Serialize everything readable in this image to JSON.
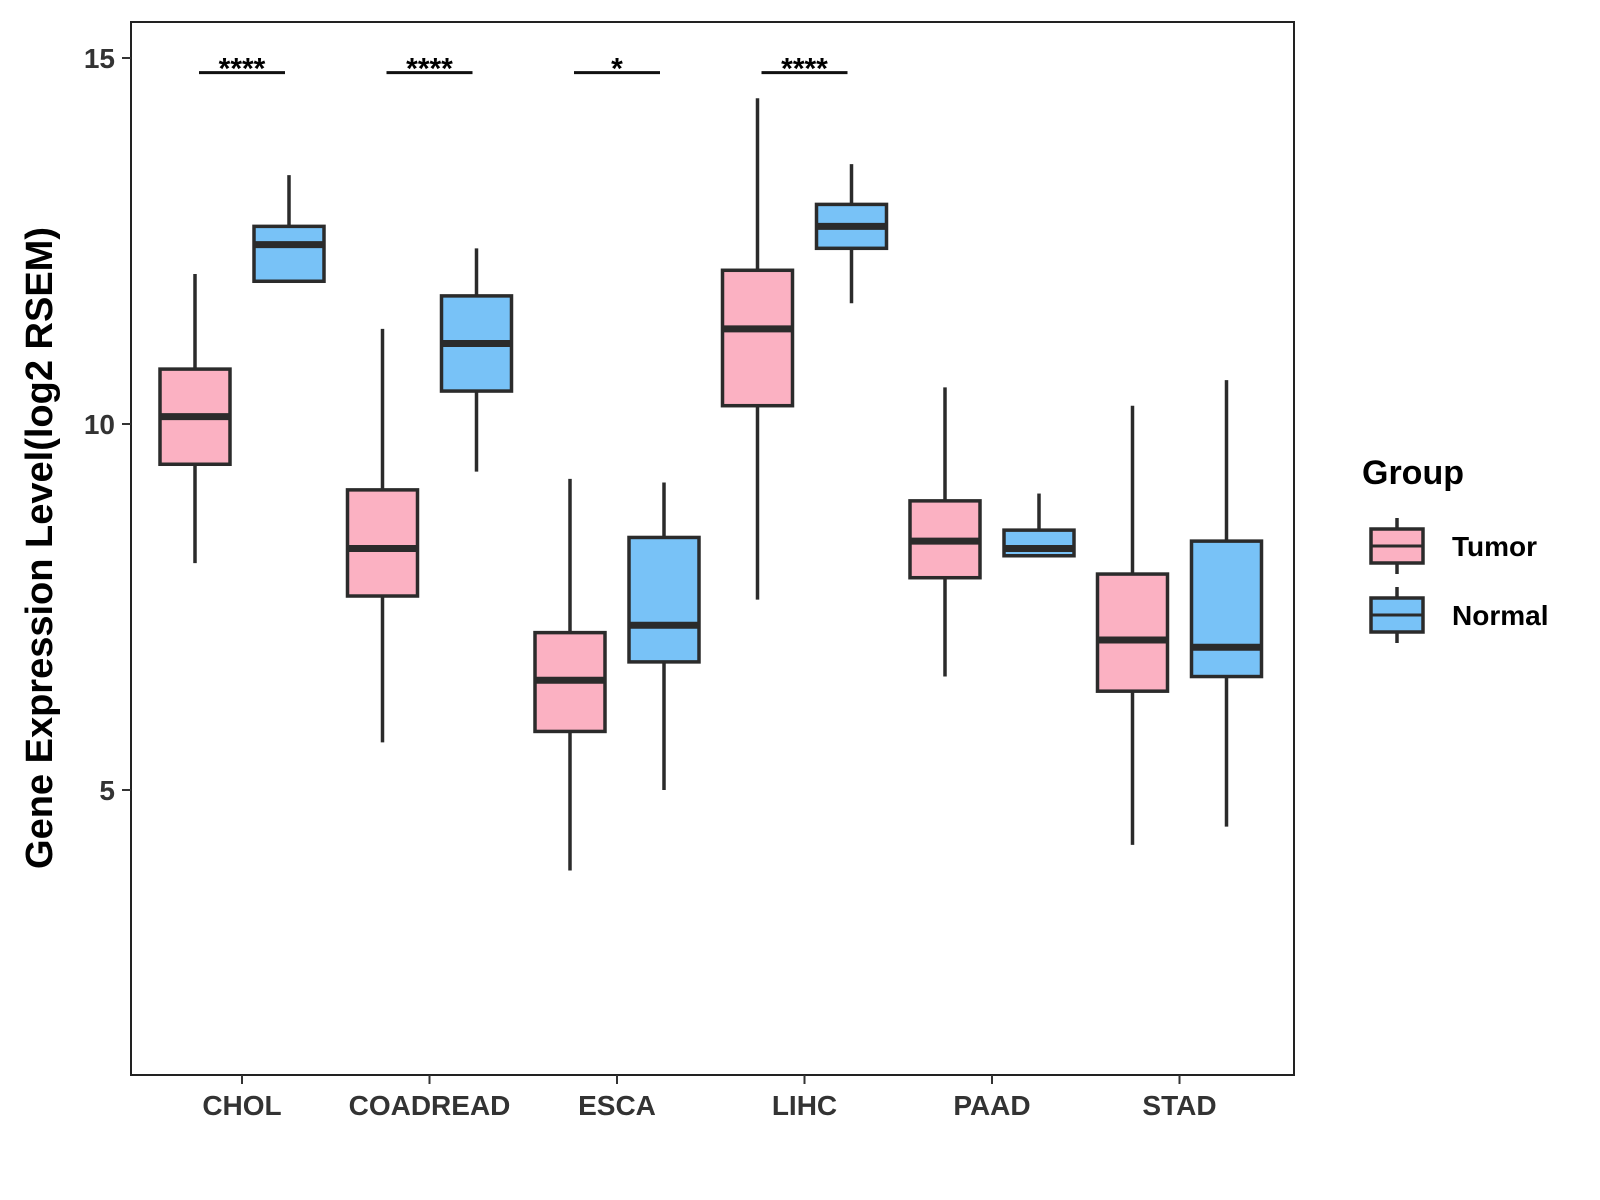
{
  "chart_data": {
    "type": "boxplot",
    "title": "",
    "xlabel": "",
    "ylabel": "Gene Expression Level(log2 RSEM)",
    "ylim": [
      1.2,
      15.5
    ],
    "yticks": [
      5,
      10,
      15
    ],
    "ytick_labels": [
      "5",
      "10",
      "15"
    ],
    "categories": [
      "CHOL",
      "COADREAD",
      "ESCA",
      "LIHC",
      "PAAD",
      "STAD"
    ],
    "legend": {
      "title": "Group",
      "position": "right",
      "entries": [
        "Tumor",
        "Normal"
      ]
    },
    "colors": {
      "Tumor": "#FBB1C2",
      "Normal": "#78C2F7",
      "outline": "#2b2b2b",
      "frame": "#222222"
    },
    "series": [
      {
        "name": "Tumor",
        "boxes": [
          {
            "min": 8.1,
            "q1": 9.45,
            "median": 10.1,
            "q3": 10.75,
            "max": 12.05
          },
          {
            "min": 5.65,
            "q1": 7.65,
            "median": 8.3,
            "q3": 9.1,
            "max": 11.3
          },
          {
            "min": 3.9,
            "q1": 5.8,
            "median": 6.5,
            "q3": 7.15,
            "max": 9.25
          },
          {
            "min": 7.6,
            "q1": 10.25,
            "median": 11.3,
            "q3": 12.1,
            "max": 14.45
          },
          {
            "min": 6.55,
            "q1": 7.9,
            "median": 8.4,
            "q3": 8.95,
            "max": 10.5
          },
          {
            "min": 4.25,
            "q1": 6.35,
            "median": 7.05,
            "q3": 7.95,
            "max": 10.25
          }
        ]
      },
      {
        "name": "Normal",
        "boxes": [
          {
            "min": 11.95,
            "q1": 11.95,
            "median": 12.45,
            "q3": 12.7,
            "max": 13.4
          },
          {
            "min": 9.35,
            "q1": 10.45,
            "median": 11.1,
            "q3": 11.75,
            "max": 12.4
          },
          {
            "min": 5.0,
            "q1": 6.75,
            "median": 7.25,
            "q3": 8.45,
            "max": 9.2
          },
          {
            "min": 11.65,
            "q1": 12.4,
            "median": 12.7,
            "q3": 13.0,
            "max": 13.55
          },
          {
            "min": 8.2,
            "q1": 8.2,
            "median": 8.3,
            "q3": 8.55,
            "max": 9.05
          },
          {
            "min": 4.5,
            "q1": 6.55,
            "median": 6.95,
            "q3": 8.4,
            "max": 10.6
          }
        ]
      }
    ],
    "significance": [
      {
        "category": "CHOL",
        "label": "****"
      },
      {
        "category": "COADREAD",
        "label": "****"
      },
      {
        "category": "ESCA",
        "label": "*"
      },
      {
        "category": "LIHC",
        "label": "****"
      }
    ]
  }
}
